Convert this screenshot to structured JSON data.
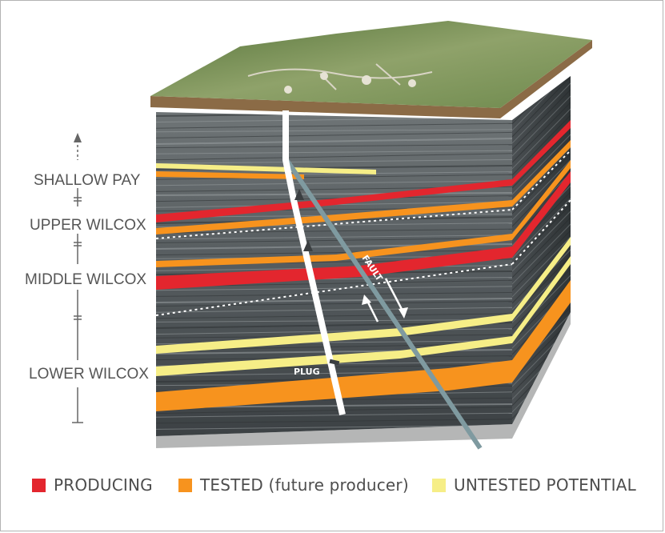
{
  "zones": [
    {
      "label": "SHALLOW PAY"
    },
    {
      "label": "UPPER WILCOX"
    },
    {
      "label": "MIDDLE WILCOX"
    },
    {
      "label": "LOWER WILCOX"
    }
  ],
  "annotations": {
    "fault": "FAULT",
    "plug": "PLUG"
  },
  "legend": [
    {
      "label": "PRODUCING",
      "color": "#e3262e"
    },
    {
      "label": "TESTED (future producer)",
      "color": "#f7931e"
    },
    {
      "label": "UNTESTED POTENTIAL",
      "color": "#f6ee87"
    }
  ],
  "colors": {
    "producing": "#e3262e",
    "tested": "#f7931e",
    "untested": "#f6ee87",
    "rock_dark": "#3b3f41",
    "rock_light": "#8a8f90",
    "grass": "#6f8a4e",
    "soil": "#8b6b46"
  }
}
